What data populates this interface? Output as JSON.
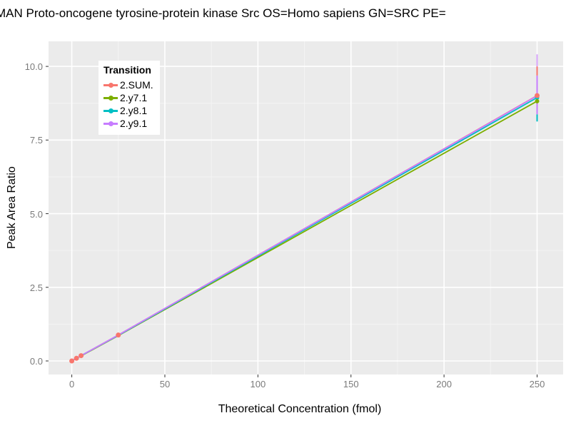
{
  "chart_data": {
    "type": "line",
    "title": "MAN Proto-oncogene tyrosine-protein kinase Src OS=Homo sapiens GN=SRC PE=",
    "xlabel": "Theoretical Concentration (fmol)",
    "ylabel": "Peak Area Ratio",
    "legend_title": "Transition",
    "legend_position": "inside-top-left",
    "x": [
      0,
      2.5,
      5,
      25,
      250
    ],
    "series": [
      {
        "name": "2.SUM.",
        "color": "#F8766D",
        "values": [
          0.0,
          0.09,
          0.18,
          0.88,
          9.01
        ]
      },
      {
        "name": "2.y7.1",
        "color": "#7CAE00",
        "values": [
          0.0,
          0.09,
          0.17,
          0.86,
          8.82
        ]
      },
      {
        "name": "2.y8.1",
        "color": "#00BFC4",
        "values": [
          0.0,
          0.09,
          0.18,
          0.87,
          8.94
        ]
      },
      {
        "name": "2.y9.1",
        "color": "#C77CFF",
        "values": [
          0.0,
          0.09,
          0.18,
          0.88,
          9.0
        ]
      }
    ],
    "error_bars": [
      {
        "x": 250,
        "segments": [
          {
            "series": "2.y9.1",
            "color": "#C77CFF",
            "from": 8.37,
            "to": 9.69
          },
          {
            "series": "2.y8.1",
            "color": "#00BFC4",
            "from": 8.13,
            "to": 8.37
          },
          {
            "series": "2.SUM.",
            "color": "#F8766D",
            "from": 9.69,
            "to": 10.0
          },
          {
            "series": "2.y9.1",
            "color": "#D9A6FD",
            "from": 10.0,
            "to": 10.41
          }
        ]
      }
    ],
    "points": [
      {
        "series": "2.y8.1",
        "color": "#00BFC4",
        "x": 250,
        "y": 8.94,
        "r": 3
      },
      {
        "series": "2.y7.1",
        "color": "#7CAE00",
        "x": 250,
        "y": 8.82,
        "r": 3
      },
      {
        "series": "2.SUM.",
        "color": "#F8766D",
        "x": 0,
        "y": 0.0,
        "r": 3.5
      },
      {
        "series": "2.SUM.",
        "color": "#F8766D",
        "x": 2.5,
        "y": 0.09,
        "r": 3.5
      },
      {
        "series": "2.SUM.",
        "color": "#F8766D",
        "x": 5,
        "y": 0.18,
        "r": 3.5
      },
      {
        "series": "2.SUM.",
        "color": "#F8766D",
        "x": 25,
        "y": 0.88,
        "r": 3.5
      },
      {
        "series": "2.SUM.",
        "color": "#F8766D",
        "x": 250,
        "y": 9.01,
        "r": 3.5
      }
    ],
    "x_ticks": {
      "values": [
        0,
        50,
        100,
        150,
        200,
        250
      ],
      "labels": [
        "0",
        "50",
        "100",
        "150",
        "200",
        "250"
      ]
    },
    "y_ticks": {
      "values": [
        0,
        2.5,
        5,
        7.5,
        10
      ],
      "labels": [
        "0.0",
        "2.5",
        "5.0",
        "7.5",
        "10.0"
      ]
    },
    "x_minor": [
      25,
      75,
      125,
      175,
      225
    ],
    "y_minor": [
      1.25,
      3.75,
      6.25,
      8.75
    ],
    "xlim": [
      -12.5,
      264
    ],
    "ylim": [
      -0.46,
      10.85
    ],
    "grid": true,
    "colors": {
      "panel_bg": "#EBEBEB",
      "grid_major": "#FFFFFF",
      "grid_minor": "#F4F4F4",
      "tick_text": "#7a7a7a",
      "tick_mark": "#333333",
      "title_text": "#000000"
    }
  }
}
